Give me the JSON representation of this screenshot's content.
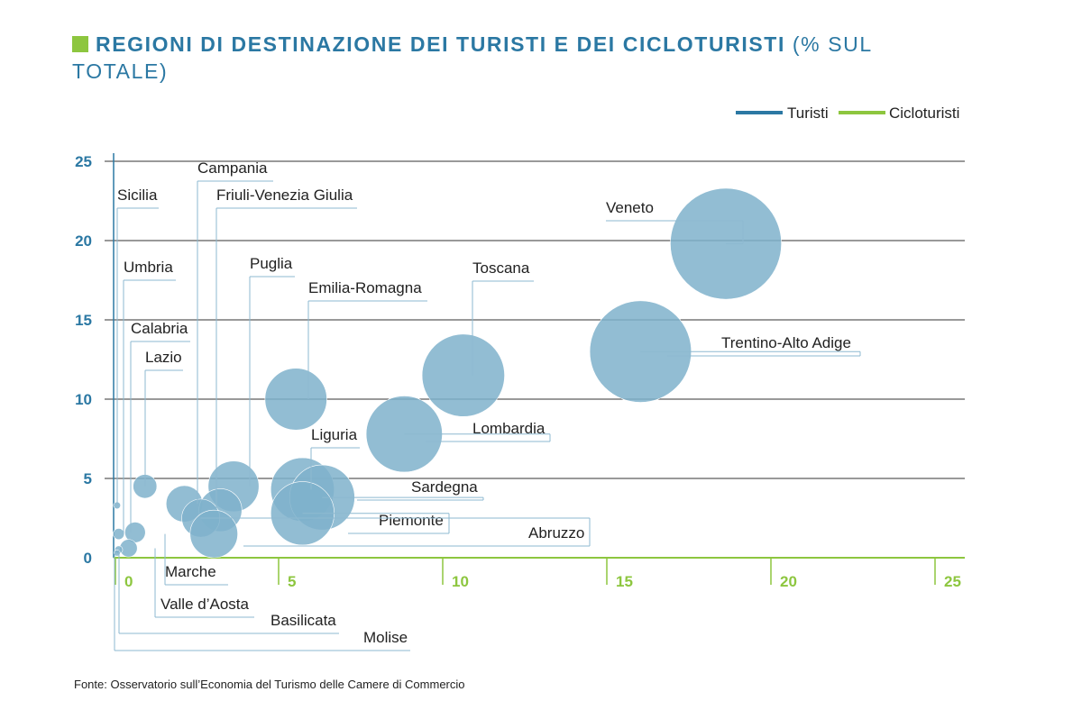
{
  "title": {
    "main": "REGIONI DI DESTINAZIONE DEI TURISTI E DEI CICLOTURISTI",
    "suffix": " (% SUL TOTALE)"
  },
  "source": "Fonte: Osservatorio sull’Economia del Turismo delle Camere di Commercio",
  "colors": {
    "turisti": "#2b78a3",
    "cicloturisti": "#8dc63f",
    "bubble": "#7fb1cb",
    "grid": "#333333"
  },
  "chart_data": {
    "type": "scatter",
    "title": "REGIONI DI DESTINAZIONE DEI TURISTI E DEI CICLOTURISTI (% SUL TOTALE)",
    "legend": {
      "position": "top-right",
      "entries": [
        "Turisti",
        "Cicloturisti"
      ]
    },
    "x_axis": {
      "series": "Cicloturisti",
      "range": [
        0,
        25
      ],
      "ticks": [
        0,
        5,
        10,
        15,
        20,
        25
      ]
    },
    "y_axis": {
      "series": "Turisti",
      "range": [
        0,
        25
      ],
      "ticks": [
        0,
        5,
        10,
        15,
        20,
        25
      ]
    },
    "grid": "horizontal",
    "points": [
      {
        "label": "Veneto",
        "x": 18.6,
        "y": 19.8,
        "r": 3.5
      },
      {
        "label": "Trentino-Alto Adige",
        "x": 16.0,
        "y": 13.0,
        "r": 3.2
      },
      {
        "label": "Toscana",
        "x": 10.6,
        "y": 11.5,
        "r": 2.6
      },
      {
        "label": "Lombardia",
        "x": 8.8,
        "y": 7.8,
        "r": 2.4
      },
      {
        "label": "Emilia-Romagna",
        "x": 5.5,
        "y": 10.0,
        "r": 1.95
      },
      {
        "label": "Liguria",
        "x": 5.7,
        "y": 4.3,
        "r": 2.0
      },
      {
        "label": "Sardegna",
        "x": 6.3,
        "y": 3.8,
        "r": 2.05
      },
      {
        "label": "Piemonte",
        "x": 5.7,
        "y": 2.8,
        "r": 2.0
      },
      {
        "label": "Puglia",
        "x": 3.6,
        "y": 4.5,
        "r": 1.6
      },
      {
        "label": "Campania",
        "x": 2.1,
        "y": 3.4,
        "r": 1.15
      },
      {
        "label": "Friuli-Venezia Giulia",
        "x": 3.2,
        "y": 3.0,
        "r": 1.35
      },
      {
        "label": "Abruzzo",
        "x": 2.6,
        "y": 2.5,
        "r": 1.2
      },
      {
        "label": "Marche",
        "x": 3.0,
        "y": 1.5,
        "r": 1.5
      },
      {
        "label": "Lazio",
        "x": 0.9,
        "y": 4.5,
        "r": 0.75
      },
      {
        "label": "Calabria",
        "x": 0.6,
        "y": 1.6,
        "r": 0.65
      },
      {
        "label": "Umbria",
        "x": 0.1,
        "y": 1.5,
        "r": 0.35
      },
      {
        "label": "Valle d’Aosta",
        "x": 0.4,
        "y": 0.6,
        "r": 0.55
      },
      {
        "label": "Sicilia",
        "x": 0.05,
        "y": 3.3,
        "r": 0.22
      },
      {
        "label": "Basilicata",
        "x": 0.1,
        "y": 0.5,
        "r": 0.25
      },
      {
        "label": "Molise",
        "x": 0.05,
        "y": 0.3,
        "r": 0.18
      }
    ]
  }
}
